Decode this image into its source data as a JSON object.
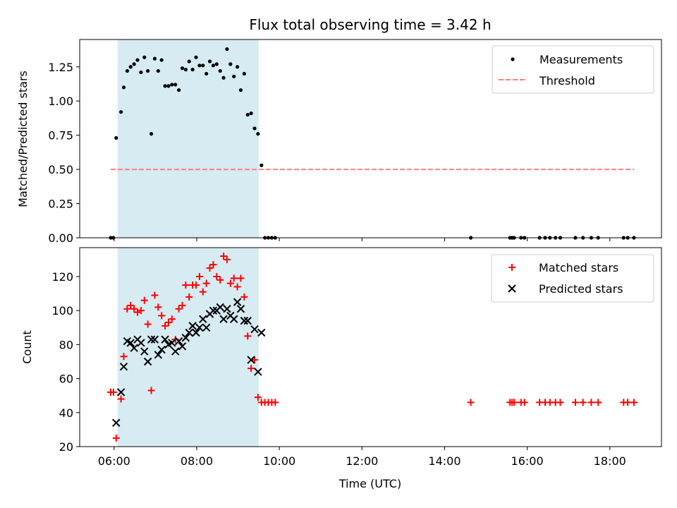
{
  "colors": {
    "measurement": "#000000",
    "threshold": "#ff7f7f",
    "matched": "#ff0000",
    "predicted": "#000000",
    "span": "#add8e6"
  },
  "chart_data": [
    {
      "type": "scatter",
      "title": "Flux total observing time = 3.42 h",
      "xlabel": "",
      "ylabel": "Matched/Predicted stars",
      "xlim": [
        "05:10",
        "19:15"
      ],
      "ylim": [
        0,
        1.45
      ],
      "yticks": [
        0.0,
        0.25,
        0.5,
        0.75,
        1.0,
        1.25
      ],
      "ytick_labels": [
        "0.00",
        "0.25",
        "0.50",
        "0.75",
        "1.00",
        "1.25"
      ],
      "shaded_span": [
        "06:05",
        "09:30"
      ],
      "legend": {
        "position": "upper right",
        "entries": [
          "Measurements",
          "Threshold"
        ]
      },
      "threshold": {
        "name": "Threshold",
        "y": 0.5,
        "x": [
          "05:55",
          "18:35"
        ]
      },
      "series": [
        {
          "name": "Measurements",
          "marker": "dot",
          "points": [
            [
              "05:55",
              0.0
            ],
            [
              "05:59",
              0.0
            ],
            [
              "06:03",
              0.73
            ],
            [
              "06:10",
              0.92
            ],
            [
              "06:14",
              1.1
            ],
            [
              "06:19",
              1.22
            ],
            [
              "06:24",
              1.25
            ],
            [
              "06:29",
              1.27
            ],
            [
              "06:34",
              1.3
            ],
            [
              "06:39",
              1.21
            ],
            [
              "06:44",
              1.32
            ],
            [
              "06:49",
              1.22
            ],
            [
              "06:54",
              0.76
            ],
            [
              "06:59",
              1.31
            ],
            [
              "07:04",
              1.22
            ],
            [
              "07:09",
              1.3
            ],
            [
              "07:14",
              1.11
            ],
            [
              "07:19",
              1.11
            ],
            [
              "07:24",
              1.12
            ],
            [
              "07:29",
              1.12
            ],
            [
              "07:34",
              1.08
            ],
            [
              "07:39",
              1.24
            ],
            [
              "07:44",
              1.23
            ],
            [
              "07:49",
              1.29
            ],
            [
              "07:54",
              1.23
            ],
            [
              "07:59",
              1.32
            ],
            [
              "08:04",
              1.26
            ],
            [
              "08:09",
              1.26
            ],
            [
              "08:14",
              1.2
            ],
            [
              "08:19",
              1.29
            ],
            [
              "08:24",
              1.26
            ],
            [
              "08:29",
              1.27
            ],
            [
              "08:34",
              1.22
            ],
            [
              "08:39",
              1.17
            ],
            [
              "08:44",
              1.38
            ],
            [
              "08:49",
              1.27
            ],
            [
              "08:54",
              1.18
            ],
            [
              "08:59",
              1.25
            ],
            [
              "09:04",
              1.08
            ],
            [
              "09:09",
              1.2
            ],
            [
              "09:14",
              0.9
            ],
            [
              "09:19",
              0.91
            ],
            [
              "09:24",
              0.8
            ],
            [
              "09:29",
              0.76
            ],
            [
              "09:34",
              0.53
            ],
            [
              "09:39",
              0.0
            ],
            [
              "09:44",
              0.0
            ],
            [
              "09:49",
              0.0
            ],
            [
              "09:54",
              0.0
            ],
            [
              "14:38",
              0.0
            ],
            [
              "15:35",
              0.0
            ],
            [
              "15:38",
              0.0
            ],
            [
              "15:41",
              0.0
            ],
            [
              "15:51",
              0.0
            ],
            [
              "15:56",
              0.0
            ],
            [
              "16:18",
              0.0
            ],
            [
              "16:26",
              0.0
            ],
            [
              "16:33",
              0.0
            ],
            [
              "16:41",
              0.0
            ],
            [
              "16:48",
              0.0
            ],
            [
              "17:10",
              0.0
            ],
            [
              "17:21",
              0.0
            ],
            [
              "17:33",
              0.0
            ],
            [
              "17:43",
              0.0
            ],
            [
              "18:20",
              0.0
            ],
            [
              "18:26",
              0.0
            ],
            [
              "18:35",
              0.0
            ]
          ]
        }
      ],
      "grid": false
    },
    {
      "type": "scatter",
      "title": "",
      "xlabel": "Time (UTC)",
      "ylabel": "Count",
      "xlim": [
        "05:10",
        "19:15"
      ],
      "ylim": [
        20,
        137
      ],
      "yticks": [
        20,
        40,
        60,
        80,
        100,
        120
      ],
      "xticks": [
        "06:00",
        "08:00",
        "10:00",
        "12:00",
        "14:00",
        "16:00",
        "18:00"
      ],
      "shaded_span": [
        "06:05",
        "09:30"
      ],
      "legend": {
        "position": "upper right",
        "entries": [
          "Matched stars",
          "Predicted stars"
        ]
      },
      "series": [
        {
          "name": "Matched stars",
          "marker": "plus",
          "points": [
            [
              "05:55",
              52
            ],
            [
              "05:59",
              52
            ],
            [
              "06:03",
              25
            ],
            [
              "06:10",
              48
            ],
            [
              "06:14",
              73
            ],
            [
              "06:19",
              101
            ],
            [
              "06:24",
              103
            ],
            [
              "06:29",
              101
            ],
            [
              "06:34",
              99
            ],
            [
              "06:39",
              100
            ],
            [
              "06:44",
              106
            ],
            [
              "06:49",
              92
            ],
            [
              "06:54",
              53
            ],
            [
              "06:59",
              109
            ],
            [
              "07:04",
              102
            ],
            [
              "07:09",
              97
            ],
            [
              "07:14",
              91
            ],
            [
              "07:19",
              93
            ],
            [
              "07:24",
              95
            ],
            [
              "07:29",
              83
            ],
            [
              "07:34",
              101
            ],
            [
              "07:39",
              103
            ],
            [
              "07:44",
              115
            ],
            [
              "07:49",
              108
            ],
            [
              "07:54",
              115
            ],
            [
              "07:59",
              115
            ],
            [
              "08:04",
              120
            ],
            [
              "08:09",
              111
            ],
            [
              "08:14",
              116
            ],
            [
              "08:19",
              125
            ],
            [
              "08:24",
              127
            ],
            [
              "08:29",
              120
            ],
            [
              "08:34",
              118
            ],
            [
              "08:39",
              132
            ],
            [
              "08:44",
              130
            ],
            [
              "08:49",
              116
            ],
            [
              "08:54",
              119
            ],
            [
              "08:59",
              114
            ],
            [
              "09:04",
              119
            ],
            [
              "09:09",
              108
            ],
            [
              "09:14",
              85
            ],
            [
              "09:19",
              66
            ],
            [
              "09:24",
              71
            ],
            [
              "09:29",
              49
            ],
            [
              "09:34",
              46
            ],
            [
              "09:39",
              46
            ],
            [
              "09:44",
              46
            ],
            [
              "09:49",
              46
            ],
            [
              "09:54",
              46
            ],
            [
              "14:38",
              46
            ],
            [
              "15:35",
              46
            ],
            [
              "15:38",
              46
            ],
            [
              "15:41",
              46
            ],
            [
              "15:51",
              46
            ],
            [
              "15:56",
              46
            ],
            [
              "16:18",
              46
            ],
            [
              "16:26",
              46
            ],
            [
              "16:33",
              46
            ],
            [
              "16:41",
              46
            ],
            [
              "16:48",
              46
            ],
            [
              "17:10",
              46
            ],
            [
              "17:21",
              46
            ],
            [
              "17:33",
              46
            ],
            [
              "17:43",
              46
            ],
            [
              "18:20",
              46
            ],
            [
              "18:26",
              46
            ],
            [
              "18:35",
              46
            ]
          ]
        },
        {
          "name": "Predicted stars",
          "marker": "x",
          "points": [
            [
              "06:03",
              34
            ],
            [
              "06:10",
              52
            ],
            [
              "06:14",
              67
            ],
            [
              "06:19",
              82
            ],
            [
              "06:24",
              81
            ],
            [
              "06:29",
              78
            ],
            [
              "06:34",
              83
            ],
            [
              "06:39",
              81
            ],
            [
              "06:44",
              76
            ],
            [
              "06:49",
              70
            ],
            [
              "06:54",
              83
            ],
            [
              "06:59",
              83
            ],
            [
              "07:04",
              74
            ],
            [
              "07:09",
              77
            ],
            [
              "07:14",
              83
            ],
            [
              "07:19",
              80
            ],
            [
              "07:24",
              81
            ],
            [
              "07:29",
              76
            ],
            [
              "07:34",
              82
            ],
            [
              "07:39",
              79
            ],
            [
              "07:44",
              84
            ],
            [
              "07:49",
              87
            ],
            [
              "07:54",
              91
            ],
            [
              "07:59",
              87
            ],
            [
              "08:04",
              90
            ],
            [
              "08:09",
              95
            ],
            [
              "08:14",
              90
            ],
            [
              "08:19",
              98
            ],
            [
              "08:24",
              100
            ],
            [
              "08:29",
              100
            ],
            [
              "08:34",
              102
            ],
            [
              "08:39",
              95
            ],
            [
              "08:44",
              101
            ],
            [
              "08:49",
              97
            ],
            [
              "08:54",
              95
            ],
            [
              "08:59",
              105
            ],
            [
              "09:04",
              101
            ],
            [
              "09:09",
              94
            ],
            [
              "09:14",
              94
            ],
            [
              "09:19",
              71
            ],
            [
              "09:24",
              89
            ],
            [
              "09:29",
              64
            ],
            [
              "09:34",
              87
            ]
          ]
        }
      ],
      "grid": false
    }
  ]
}
